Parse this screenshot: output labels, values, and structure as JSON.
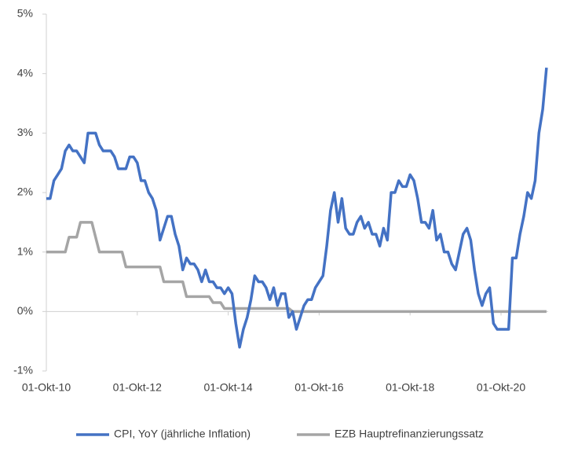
{
  "chart_data": {
    "type": "line",
    "categories": [
      "01-Okt-10",
      null,
      null,
      null,
      null,
      null,
      null,
      null,
      null,
      null,
      null,
      null,
      null,
      null,
      null,
      null,
      null,
      null,
      null,
      null,
      null,
      null,
      null,
      null,
      "01-Okt-12",
      null,
      null,
      null,
      null,
      null,
      null,
      null,
      null,
      null,
      null,
      null,
      null,
      null,
      null,
      null,
      null,
      null,
      null,
      null,
      null,
      null,
      null,
      null,
      "01-Okt-14",
      null,
      null,
      null,
      null,
      null,
      null,
      null,
      null,
      null,
      null,
      null,
      null,
      null,
      null,
      null,
      null,
      null,
      null,
      null,
      null,
      null,
      null,
      null,
      "01-Okt-16",
      null,
      null,
      null,
      null,
      null,
      null,
      null,
      null,
      null,
      null,
      null,
      null,
      null,
      null,
      null,
      null,
      null,
      null,
      null,
      null,
      null,
      null,
      null,
      "01-Okt-18",
      null,
      null,
      null,
      null,
      null,
      null,
      null,
      null,
      null,
      null,
      null,
      null,
      null,
      null,
      null,
      null,
      null,
      null,
      null,
      null,
      null,
      null,
      null,
      "01-Okt-20",
      null,
      null,
      null,
      null,
      null,
      null,
      null,
      null,
      null,
      null,
      null,
      null
    ],
    "series": [
      {
        "name": "CPI, YoY (jährliche Inflation)",
        "color": "#4472c4",
        "values": [
          1.9,
          1.9,
          2.2,
          2.3,
          2.4,
          2.7,
          2.8,
          2.7,
          2.7,
          2.6,
          2.5,
          3.0,
          3.0,
          3.0,
          2.8,
          2.7,
          2.7,
          2.7,
          2.6,
          2.4,
          2.4,
          2.4,
          2.6,
          2.6,
          2.5,
          2.2,
          2.2,
          2.0,
          1.9,
          1.7,
          1.2,
          1.4,
          1.6,
          1.6,
          1.3,
          1.1,
          0.7,
          0.9,
          0.8,
          0.8,
          0.7,
          0.5,
          0.7,
          0.5,
          0.5,
          0.4,
          0.4,
          0.3,
          0.4,
          0.3,
          -0.2,
          -0.6,
          -0.3,
          -0.1,
          0.2,
          0.6,
          0.5,
          0.5,
          0.4,
          0.2,
          0.4,
          0.1,
          0.3,
          0.3,
          -0.1,
          0.0,
          -0.3,
          -0.1,
          0.1,
          0.2,
          0.2,
          0.4,
          0.5,
          0.6,
          1.1,
          1.7,
          2.0,
          1.5,
          1.9,
          1.4,
          1.3,
          1.3,
          1.5,
          1.6,
          1.4,
          1.5,
          1.3,
          1.3,
          1.1,
          1.4,
          1.2,
          2.0,
          2.0,
          2.2,
          2.1,
          2.1,
          2.3,
          2.2,
          1.9,
          1.5,
          1.5,
          1.4,
          1.7,
          1.2,
          1.3,
          1.0,
          1.0,
          0.8,
          0.7,
          1.0,
          1.3,
          1.4,
          1.2,
          0.7,
          0.3,
          0.1,
          0.3,
          0.4,
          -0.2,
          -0.3,
          -0.3,
          -0.3,
          -0.3,
          0.9,
          0.9,
          1.3,
          1.6,
          2.0,
          1.9,
          2.2,
          3.0,
          3.4,
          4.1
        ]
      },
      {
        "name": "EZB Hauptrefinanzierungssatz",
        "color": "#a5a5a5",
        "values": [
          1.0,
          1.0,
          1.0,
          1.0,
          1.0,
          1.0,
          1.25,
          1.25,
          1.25,
          1.5,
          1.5,
          1.5,
          1.5,
          1.25,
          1.0,
          1.0,
          1.0,
          1.0,
          1.0,
          1.0,
          1.0,
          0.75,
          0.75,
          0.75,
          0.75,
          0.75,
          0.75,
          0.75,
          0.75,
          0.75,
          0.75,
          0.5,
          0.5,
          0.5,
          0.5,
          0.5,
          0.5,
          0.25,
          0.25,
          0.25,
          0.25,
          0.25,
          0.25,
          0.25,
          0.15,
          0.15,
          0.15,
          0.05,
          0.05,
          0.05,
          0.05,
          0.05,
          0.05,
          0.05,
          0.05,
          0.05,
          0.05,
          0.05,
          0.05,
          0.05,
          0.05,
          0.05,
          0.05,
          0.05,
          0.05,
          0,
          0,
          0,
          0,
          0,
          0,
          0,
          0,
          0,
          0,
          0,
          0,
          0,
          0,
          0,
          0,
          0,
          0,
          0,
          0,
          0,
          0,
          0,
          0,
          0,
          0,
          0,
          0,
          0,
          0,
          0,
          0,
          0,
          0,
          0,
          0,
          0,
          0,
          0,
          0,
          0,
          0,
          0,
          0,
          0,
          0,
          0,
          0,
          0,
          0,
          0,
          0,
          0,
          0,
          0,
          0,
          0,
          0,
          0,
          0,
          0,
          0,
          0,
          0,
          0,
          0,
          0,
          0
        ]
      }
    ],
    "ylim": [
      -1,
      5
    ],
    "yticks": [
      {
        "value": -1,
        "label": "-1%"
      },
      {
        "value": 0,
        "label": "0%"
      },
      {
        "value": 1,
        "label": "1%"
      },
      {
        "value": 2,
        "label": "2%"
      },
      {
        "value": 3,
        "label": "3%"
      },
      {
        "value": 4,
        "label": "4%"
      },
      {
        "value": 5,
        "label": "5%"
      }
    ],
    "grid": false
  }
}
